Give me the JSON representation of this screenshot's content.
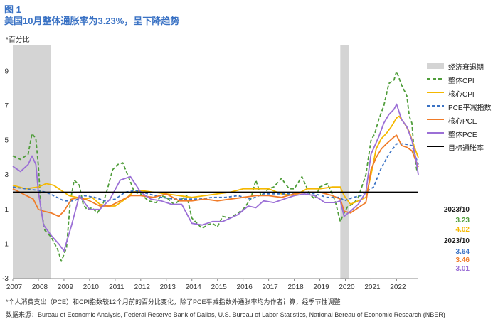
{
  "header": {
    "figure_number": "图 1",
    "title": "美国10月整体通胀率为3.23%，呈下降趋势"
  },
  "chart_data": {
    "type": "line",
    "ylabel": "*百分比",
    "ylim": [
      -3,
      10.5
    ],
    "y_ticks": [
      9,
      7,
      5,
      3,
      1,
      -1,
      -3
    ],
    "xlim": [
      2007,
      2022.85
    ],
    "x_ticks": [
      "2007",
      "2008",
      "2009",
      "2010",
      "2011",
      "2012",
      "2013",
      "2014",
      "2015",
      "2016",
      "2017",
      "2018",
      "2019",
      "2020",
      "2021",
      "2022"
    ],
    "recessions": [
      [
        2007.0,
        2008.5
      ],
      [
        2019.8,
        2020.15
      ]
    ],
    "target": 2,
    "series": [
      {
        "name": "整体CPI",
        "color": "#4f9d3a",
        "dash": "5,3",
        "x": [
          2007,
          2007.3,
          2007.6,
          2007.75,
          2007.9,
          2008.0,
          2008.1,
          2008.25,
          2008.5,
          2008.75,
          2008.9,
          2009.1,
          2009.25,
          2009.4,
          2009.6,
          2009.75,
          2009.9,
          2010.1,
          2010.3,
          2010.5,
          2010.7,
          2010.9,
          2011.1,
          2011.3,
          2011.6,
          2011.75,
          2012.0,
          2012.3,
          2012.6,
          2012.8,
          2013.0,
          2013.3,
          2013.6,
          2013.8,
          2014.0,
          2014.4,
          2014.6,
          2014.8,
          2015.0,
          2015.2,
          2015.5,
          2015.8,
          2016.0,
          2016.3,
          2016.5,
          2016.7,
          2017.0,
          2017.2,
          2017.5,
          2017.8,
          2018.0,
          2018.3,
          2018.6,
          2018.8,
          2019.0,
          2019.3,
          2019.6,
          2019.8,
          2019.95,
          2020.1,
          2020.3,
          2020.5,
          2020.8,
          2021.0,
          2021.15,
          2021.3,
          2021.5,
          2021.7,
          2021.9,
          2022.0,
          2022.2,
          2022.4,
          2022.5,
          2022.6,
          2022.7,
          2022.8,
          2022.85
        ],
        "y": [
          4.1,
          3.9,
          4.2,
          5.4,
          5.1,
          3.5,
          1.0,
          -0.2,
          -0.6,
          -1.3,
          -2.0,
          -1.2,
          1.5,
          2.7,
          2.4,
          1.3,
          1.0,
          1.1,
          0.8,
          1.2,
          2.2,
          3.3,
          3.6,
          3.7,
          2.6,
          2.0,
          1.9,
          1.5,
          1.4,
          1.8,
          1.7,
          1.3,
          1.6,
          1.8,
          0.5,
          -0.1,
          0.1,
          0.2,
          0.0,
          0.6,
          0.5,
          0.8,
          1.0,
          1.6,
          2.7,
          1.8,
          2.2,
          2.3,
          2.8,
          2.2,
          2.2,
          2.9,
          1.9,
          1.6,
          2.3,
          2.5,
          1.5,
          0.3,
          0.8,
          1.2,
          1.3,
          1.7,
          3.0,
          5.0,
          5.4,
          6.2,
          7.0,
          8.3,
          8.5,
          9.0,
          8.2,
          7.6,
          6.4,
          6.0,
          4.1,
          3.2,
          3.2
        ]
      },
      {
        "name": "核心CPI",
        "color": "#f5b800",
        "dash": "",
        "x": [
          2007,
          2007.5,
          2008.0,
          2008.3,
          2008.6,
          2008.9,
          2009.2,
          2009.5,
          2009.8,
          2010.1,
          2010.4,
          2010.7,
          2011.0,
          2011.4,
          2011.7,
          2012.0,
          2012.5,
          2013.0,
          2013.5,
          2014.0,
          2014.5,
          2015.0,
          2015.5,
          2016.0,
          2016.5,
          2017.0,
          2017.5,
          2018.0,
          2018.5,
          2019.0,
          2019.5,
          2019.8,
          2019.95,
          2020.2,
          2020.5,
          2020.8,
          2021.0,
          2021.2,
          2021.4,
          2021.6,
          2021.8,
          2022.0,
          2022.1,
          2022.3,
          2022.5,
          2022.7,
          2022.85
        ],
        "y": [
          2.4,
          2.2,
          2.3,
          2.5,
          2.4,
          2.1,
          1.8,
          1.7,
          1.6,
          1.7,
          1.3,
          1.2,
          1.2,
          1.6,
          2.0,
          2.1,
          2.0,
          1.9,
          1.8,
          1.7,
          1.8,
          1.9,
          2.0,
          2.2,
          2.2,
          2.2,
          1.9,
          1.8,
          2.2,
          2.2,
          2.3,
          2.3,
          1.8,
          1.3,
          1.5,
          1.7,
          3.0,
          4.5,
          5.1,
          5.4,
          5.8,
          6.3,
          6.4,
          6.0,
          5.5,
          4.6,
          4.0
        ]
      },
      {
        "name": "PCE平减指数",
        "color": "#3a72c4",
        "dash": "4,3",
        "x": [
          2007,
          2007.5,
          2008.0,
          2008.3,
          2008.6,
          2009.0,
          2009.4,
          2009.8,
          2010.2,
          2010.6,
          2011.0,
          2011.4,
          2011.8,
          2012.3,
          2012.8,
          2013.3,
          2013.8,
          2014.3,
          2014.8,
          2015.3,
          2015.8,
          2016.3,
          2016.8,
          2017.3,
          2017.8,
          2018.3,
          2018.8,
          2019.3,
          2019.8,
          2019.95,
          2020.3,
          2020.6,
          2020.9,
          2021.1,
          2021.4,
          2021.7,
          2022.0,
          2022.3,
          2022.6,
          2022.85
        ],
        "y": [
          2.3,
          2.2,
          2.1,
          2.0,
          1.8,
          1.5,
          1.5,
          1.8,
          1.7,
          1.5,
          1.6,
          2.0,
          2.1,
          1.9,
          1.7,
          1.6,
          1.6,
          1.6,
          1.7,
          1.7,
          1.8,
          1.6,
          1.9,
          1.9,
          1.9,
          2.0,
          1.9,
          1.7,
          1.7,
          1.5,
          1.7,
          1.8,
          2.1,
          2.3,
          3.4,
          4.2,
          4.8,
          4.8,
          4.7,
          3.6
        ]
      },
      {
        "name": "核心PCE",
        "color": "#f07b28",
        "dash": "",
        "x": [
          2007,
          2007.4,
          2007.8,
          2008.0,
          2008.2,
          2008.5,
          2008.8,
          2009.0,
          2009.3,
          2009.6,
          2010.0,
          2010.4,
          2010.8,
          2011.2,
          2011.6,
          2012.0,
          2012.5,
          2013.0,
          2013.5,
          2014.0,
          2014.5,
          2015.0,
          2015.5,
          2016.0,
          2016.5,
          2017.0,
          2017.5,
          2018.0,
          2018.5,
          2019.0,
          2019.5,
          2019.8,
          2019.95,
          2020.2,
          2020.5,
          2020.8,
          2021.0,
          2021.2,
          2021.4,
          2021.6,
          2021.9,
          2022.0,
          2022.2,
          2022.4,
          2022.6,
          2022.85
        ],
        "y": [
          2.2,
          1.9,
          1.6,
          1.0,
          0.9,
          0.8,
          0.6,
          0.9,
          1.6,
          1.7,
          1.5,
          1.2,
          1.2,
          1.5,
          1.8,
          1.8,
          1.7,
          1.9,
          1.5,
          1.5,
          1.6,
          1.5,
          1.6,
          1.7,
          1.8,
          1.8,
          1.7,
          1.9,
          2.0,
          2.0,
          1.8,
          1.6,
          0.9,
          0.8,
          1.1,
          1.4,
          3.3,
          4.0,
          4.5,
          4.8,
          5.2,
          5.3,
          4.7,
          4.6,
          4.4,
          3.46
        ]
      },
      {
        "name": "整体PCE",
        "color": "#9b6fd6",
        "dash": "",
        "x": [
          2007,
          2007.3,
          2007.6,
          2007.75,
          2007.9,
          2008.0,
          2008.2,
          2008.5,
          2008.8,
          2009.0,
          2009.3,
          2009.6,
          2010.0,
          2010.4,
          2010.8,
          2011.2,
          2011.6,
          2012.0,
          2012.4,
          2012.8,
          2013.2,
          2013.6,
          2014.0,
          2014.4,
          2014.8,
          2015.2,
          2015.5,
          2015.8,
          2016.2,
          2016.5,
          2016.8,
          2017.2,
          2017.6,
          2018.0,
          2018.4,
          2018.8,
          2019.2,
          2019.6,
          2019.8,
          2019.95,
          2020.2,
          2020.5,
          2020.8,
          2021.0,
          2021.3,
          2021.5,
          2021.7,
          2021.9,
          2022.0,
          2022.2,
          2022.4,
          2022.6,
          2022.75,
          2022.85
        ],
        "y": [
          3.5,
          3.2,
          3.6,
          4.1,
          3.6,
          2.0,
          0.1,
          -0.5,
          -1.0,
          -1.4,
          0.1,
          1.8,
          1.0,
          1.0,
          1.6,
          2.7,
          2.9,
          2.0,
          1.6,
          1.5,
          1.3,
          1.3,
          0.2,
          0.1,
          0.3,
          0.3,
          0.5,
          0.7,
          1.2,
          1.1,
          1.5,
          1.4,
          1.6,
          1.8,
          1.9,
          1.8,
          1.4,
          1.4,
          1.5,
          0.6,
          0.9,
          1.3,
          2.0,
          4.2,
          5.2,
          6.0,
          6.5,
          6.8,
          7.1,
          6.2,
          5.8,
          5.0,
          4.0,
          3.01
        ]
      }
    ],
    "target_label": "目标通胀率",
    "recession_label": "经济衰退期"
  },
  "latest_values": {
    "period_a": "2023/10",
    "cpi": "3.23",
    "core_cpi": "4.02",
    "period_b": "2023/10",
    "pce_deflator": "3.64",
    "core_pce": "3.46",
    "headline_pce": "3.01"
  },
  "notes": {
    "footnote": "*个人消费支出（PCE）和CPI指数较12个月前的百分比变化，除了PCE平减指数外通胀率均为作者计算，经季节性调整",
    "source": "数据来源：Bureau of Economic Analysis, Federal Reserve Bank of Dallas, U.S. Bureau of Labor Statistics, National Bereau of Economic Research (NBER)"
  },
  "colors": {
    "title": "#3a72c4",
    "recession": "#d4d4d4",
    "target": "#000000"
  }
}
